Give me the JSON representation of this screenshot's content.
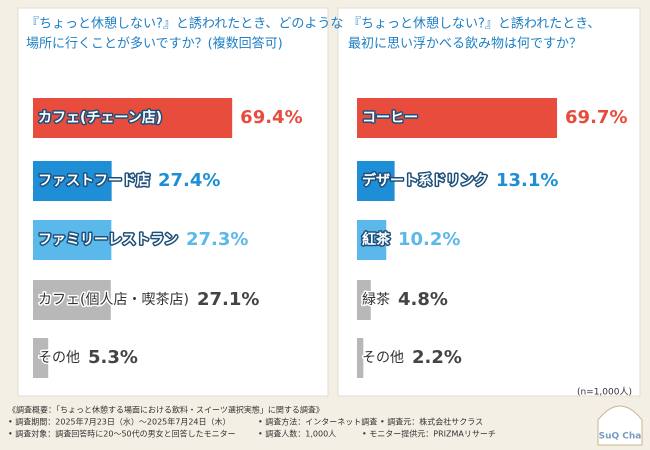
{
  "chart_data": [
    {
      "type": "bar",
      "title": [
        "『ちょっと休憩しない?』と誘われたとき、どのような",
        "場所に行くことが多いですか？(複数回答可)"
      ],
      "categories": [
        "カフェ(チェーン店)",
        "ファストフード店",
        "ファミリーレストラン",
        "カフェ(個人店・喫茶店)",
        "その他"
      ],
      "values": [
        69.4,
        27.4,
        27.3,
        27.1,
        5.3
      ],
      "value_labels": [
        "69.4%",
        "27.4%",
        "27.3%",
        "27.1%",
        "5.3%"
      ],
      "colors": [
        "#e84c3d",
        "#1e8ed6",
        "#5bb8ea",
        "#b8b8b8",
        "#b8b8b8"
      ],
      "xlim": [
        0,
        100
      ]
    },
    {
      "type": "bar",
      "title": [
        "『ちょっと休憩しない?』と誘われたとき、",
        "最初に思い浮かべる飲み物は何ですか？"
      ],
      "categories": [
        "コーヒー",
        "デザート系ドリンク",
        "紅茶",
        "緑茶",
        "その他"
      ],
      "values": [
        69.7,
        13.1,
        10.2,
        4.8,
        2.2
      ],
      "value_labels": [
        "69.7%",
        "13.1%",
        "10.2%",
        "4.8%",
        "2.2%"
      ],
      "colors": [
        "#e84c3d",
        "#1e8ed6",
        "#5bb8ea",
        "#b8b8b8",
        "#b8b8b8"
      ],
      "xlim": [
        0,
        100
      ]
    }
  ],
  "note": "(n=1,000人)",
  "footer": [
    "《調査概要：「ちょっと休憩する場面における飲料・スイーツ選択実態」に関する調査》",
    "• 調査期間：2025年7月23日（水）～2025年7月24日（木）",
    "• 調査方法：インターネット調査",
    "• 調査元：株式会社サクラス",
    "• 調査対象：調査回答時に20～50代の男女と回答したモニター",
    "• 調査人数：1,000人",
    "• モニター提供元：PRIZMAリサーチ"
  ],
  "logo": "SuQ Cha"
}
